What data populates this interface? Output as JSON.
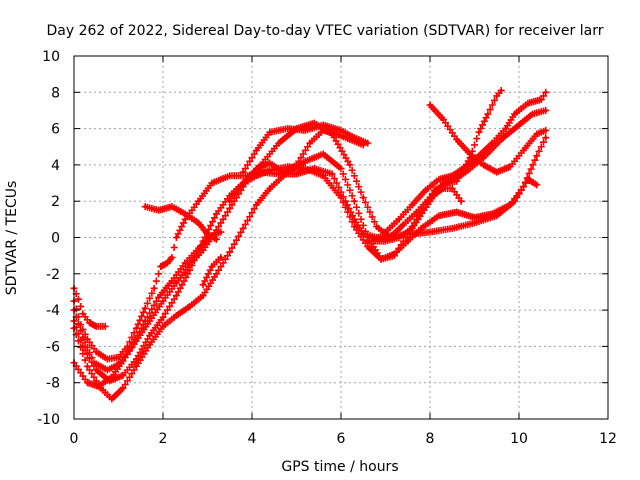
{
  "chart_data": {
    "type": "scatter",
    "title": "Day 262 of 2022, Sidereal Day-to-day VTEC variation (SDTVAR) for receiver larr",
    "xlabel": "GPS time / hours",
    "ylabel": "SDTVAR / TECUs",
    "xlim": [
      0,
      12
    ],
    "ylim": [
      -10,
      10
    ],
    "xticks": [
      "0",
      "2",
      "4",
      "6",
      "8",
      "10",
      "12"
    ],
    "yticks": [
      "-10",
      "-8",
      "-6",
      "-4",
      "-2",
      "0",
      "2",
      "4",
      "6",
      "8",
      "10"
    ],
    "grid": true,
    "marker": "cross",
    "color": "#ff0000",
    "series": [
      {
        "values": [
          [
            0.0,
            -2.8
          ],
          [
            0.1,
            -3.4
          ],
          [
            0.2,
            -4.2
          ],
          [
            0.35,
            -4.7
          ],
          [
            0.5,
            -4.9
          ],
          [
            0.7,
            -4.9
          ]
        ]
      },
      {
        "values": [
          [
            0.0,
            -3.5
          ],
          [
            0.15,
            -4.8
          ],
          [
            0.3,
            -5.6
          ],
          [
            0.5,
            -6.3
          ],
          [
            0.75,
            -6.7
          ],
          [
            1.0,
            -6.6
          ],
          [
            1.2,
            -6.0
          ],
          [
            1.4,
            -5.0
          ],
          [
            1.6,
            -3.9
          ],
          [
            1.8,
            -2.8
          ],
          [
            1.95,
            -1.6
          ],
          [
            2.1,
            -1.4
          ],
          [
            2.2,
            -1.1
          ],
          [
            2.3,
            0.0
          ],
          [
            2.5,
            1.0
          ],
          [
            2.8,
            2.0
          ],
          [
            3.1,
            3.0
          ],
          [
            3.5,
            3.4
          ],
          [
            3.9,
            3.4
          ],
          [
            4.2,
            3.6
          ],
          [
            4.6,
            3.5
          ],
          [
            5.0,
            3.5
          ],
          [
            5.4,
            3.8
          ],
          [
            5.8,
            3.5
          ],
          [
            6.1,
            2.0
          ],
          [
            6.3,
            1.0
          ],
          [
            6.5,
            0.2
          ],
          [
            6.8,
            0.0
          ],
          [
            7.2,
            0.1
          ],
          [
            7.6,
            0.2
          ],
          [
            8.0,
            0.3
          ],
          [
            8.5,
            0.5
          ],
          [
            9.0,
            0.8
          ],
          [
            9.5,
            1.2
          ],
          [
            9.9,
            2.0
          ],
          [
            10.2,
            3.2
          ],
          [
            10.4,
            2.9
          ]
        ]
      },
      {
        "values": [
          [
            0.0,
            -4.0
          ],
          [
            0.2,
            -5.5
          ],
          [
            0.45,
            -6.9
          ],
          [
            0.75,
            -7.3
          ],
          [
            1.0,
            -7.0
          ],
          [
            1.3,
            -6.0
          ],
          [
            1.6,
            -4.6
          ],
          [
            1.9,
            -3.3
          ],
          [
            2.2,
            -2.4
          ],
          [
            2.5,
            -1.4
          ],
          [
            2.8,
            -0.6
          ],
          [
            3.1,
            0.1
          ],
          [
            3.3,
            0.3
          ]
        ]
      },
      {
        "values": [
          [
            1.6,
            1.7
          ],
          [
            1.9,
            1.5
          ],
          [
            2.2,
            1.7
          ],
          [
            2.5,
            1.3
          ],
          [
            2.8,
            0.8
          ],
          [
            3.0,
            0.2
          ],
          [
            3.2,
            -0.1
          ]
        ]
      },
      {
        "values": [
          [
            0.0,
            -4.6
          ],
          [
            0.2,
            -6.0
          ],
          [
            0.5,
            -7.3
          ],
          [
            0.8,
            -7.9
          ],
          [
            1.1,
            -7.6
          ],
          [
            1.4,
            -6.7
          ],
          [
            1.7,
            -5.4
          ],
          [
            2.0,
            -4.4
          ],
          [
            2.3,
            -3.2
          ],
          [
            2.6,
            -1.8
          ],
          [
            2.9,
            -0.2
          ],
          [
            3.2,
            1.3
          ],
          [
            3.5,
            2.3
          ],
          [
            3.8,
            3.0
          ],
          [
            4.1,
            3.4
          ],
          [
            4.4,
            3.7
          ],
          [
            4.8,
            3.9
          ],
          [
            5.2,
            3.8
          ],
          [
            5.6,
            3.4
          ],
          [
            6.0,
            2.2
          ],
          [
            6.3,
            0.6
          ],
          [
            6.6,
            -0.5
          ],
          [
            6.9,
            -1.2
          ],
          [
            7.2,
            -0.9
          ],
          [
            7.5,
            -0.2
          ],
          [
            7.8,
            0.5
          ],
          [
            8.2,
            1.2
          ],
          [
            8.6,
            1.4
          ],
          [
            9.0,
            1.1
          ],
          [
            9.4,
            1.3
          ],
          [
            9.8,
            1.8
          ],
          [
            10.1,
            2.8
          ],
          [
            10.4,
            4.5
          ],
          [
            10.6,
            5.5
          ]
        ]
      },
      {
        "values": [
          [
            0.0,
            -5.0
          ],
          [
            0.3,
            -7.1
          ],
          [
            0.6,
            -8.3
          ],
          [
            0.85,
            -8.9
          ],
          [
            1.1,
            -8.3
          ],
          [
            1.4,
            -7.1
          ],
          [
            1.7,
            -5.9
          ],
          [
            2.0,
            -4.9
          ],
          [
            2.3,
            -4.3
          ],
          [
            2.6,
            -3.8
          ],
          [
            2.9,
            -3.2
          ],
          [
            3.2,
            -2.0
          ],
          [
            3.5,
            -0.8
          ],
          [
            3.8,
            0.5
          ],
          [
            4.1,
            1.8
          ],
          [
            4.4,
            2.7
          ],
          [
            4.8,
            3.6
          ],
          [
            5.2,
            4.2
          ],
          [
            5.6,
            4.6
          ],
          [
            6.0,
            3.8
          ],
          [
            6.3,
            2.0
          ],
          [
            6.6,
            0.0
          ],
          [
            6.9,
            -1.2
          ],
          [
            7.2,
            -1.0
          ],
          [
            7.5,
            0.2
          ],
          [
            7.8,
            1.4
          ],
          [
            8.1,
            2.6
          ],
          [
            8.4,
            3.0
          ],
          [
            8.8,
            3.6
          ],
          [
            9.2,
            4.4
          ],
          [
            9.6,
            5.4
          ],
          [
            10.0,
            6.2
          ],
          [
            10.3,
            6.8
          ],
          [
            10.6,
            7.0
          ]
        ]
      },
      {
        "values": [
          [
            0.0,
            -6.9
          ],
          [
            0.3,
            -8.0
          ],
          [
            0.55,
            -8.2
          ],
          [
            0.85,
            -7.7
          ],
          [
            1.1,
            -6.8
          ],
          [
            1.4,
            -5.7
          ],
          [
            1.7,
            -4.6
          ],
          [
            2.0,
            -3.5
          ],
          [
            2.3,
            -2.5
          ],
          [
            2.6,
            -1.5
          ],
          [
            2.9,
            -0.7
          ],
          [
            3.2,
            0.4
          ],
          [
            3.5,
            1.6
          ],
          [
            3.8,
            2.8
          ],
          [
            4.1,
            3.8
          ],
          [
            4.4,
            4.1
          ],
          [
            4.7,
            3.6
          ],
          [
            5.0,
            4.0
          ],
          [
            5.3,
            5.2
          ],
          [
            5.6,
            5.9
          ],
          [
            5.9,
            5.7
          ],
          [
            6.2,
            5.4
          ],
          [
            6.5,
            5.1
          ]
        ]
      },
      {
        "values": [
          [
            2.9,
            -2.6
          ],
          [
            3.1,
            -1.6
          ],
          [
            3.3,
            -1.1
          ]
        ]
      },
      {
        "values": [
          [
            3.5,
            2.0
          ],
          [
            3.8,
            3.0
          ],
          [
            4.2,
            4.0
          ],
          [
            4.6,
            5.2
          ],
          [
            5.0,
            6.0
          ],
          [
            5.4,
            6.3
          ],
          [
            5.8,
            5.7
          ],
          [
            6.2,
            4.0
          ],
          [
            6.5,
            2.2
          ],
          [
            6.8,
            0.6
          ],
          [
            7.1,
            0.0
          ],
          [
            7.4,
            0.7
          ],
          [
            7.7,
            1.4
          ],
          [
            8.0,
            2.2
          ],
          [
            8.3,
            2.7
          ],
          [
            8.5,
            2.7
          ],
          [
            8.7,
            2.0
          ]
        ]
      },
      {
        "values": [
          [
            3.8,
            3.6
          ],
          [
            4.1,
            4.8
          ],
          [
            4.4,
            5.8
          ],
          [
            4.8,
            6.0
          ],
          [
            5.2,
            5.9
          ],
          [
            5.6,
            6.2
          ],
          [
            6.0,
            5.9
          ],
          [
            6.3,
            5.5
          ],
          [
            6.6,
            5.2
          ]
        ]
      },
      {
        "values": [
          [
            8.0,
            7.3
          ],
          [
            8.3,
            6.5
          ],
          [
            8.6,
            5.4
          ],
          [
            8.9,
            4.6
          ],
          [
            9.2,
            4.0
          ],
          [
            9.5,
            3.6
          ],
          [
            9.8,
            3.9
          ],
          [
            10.1,
            4.8
          ],
          [
            10.4,
            5.7
          ],
          [
            10.6,
            5.9
          ]
        ]
      },
      {
        "values": [
          [
            6.6,
            -0.2
          ],
          [
            7.0,
            -0.2
          ],
          [
            7.3,
            0.0
          ],
          [
            7.6,
            0.5
          ],
          [
            8.0,
            2.0
          ],
          [
            8.3,
            3.0
          ],
          [
            8.6,
            3.1
          ],
          [
            8.9,
            4.4
          ],
          [
            9.1,
            5.8
          ],
          [
            9.3,
            6.8
          ],
          [
            9.5,
            7.8
          ],
          [
            9.6,
            8.1
          ]
        ]
      },
      {
        "values": [
          [
            7.0,
            0.3
          ],
          [
            7.3,
            1.0
          ],
          [
            7.6,
            1.8
          ],
          [
            7.9,
            2.6
          ],
          [
            8.2,
            3.2
          ],
          [
            8.5,
            3.4
          ],
          [
            8.8,
            3.9
          ],
          [
            9.1,
            4.5
          ],
          [
            9.4,
            5.2
          ],
          [
            9.7,
            6.0
          ],
          [
            9.9,
            6.8
          ],
          [
            10.2,
            7.4
          ],
          [
            10.5,
            7.6
          ],
          [
            10.6,
            8.0
          ]
        ]
      }
    ]
  }
}
